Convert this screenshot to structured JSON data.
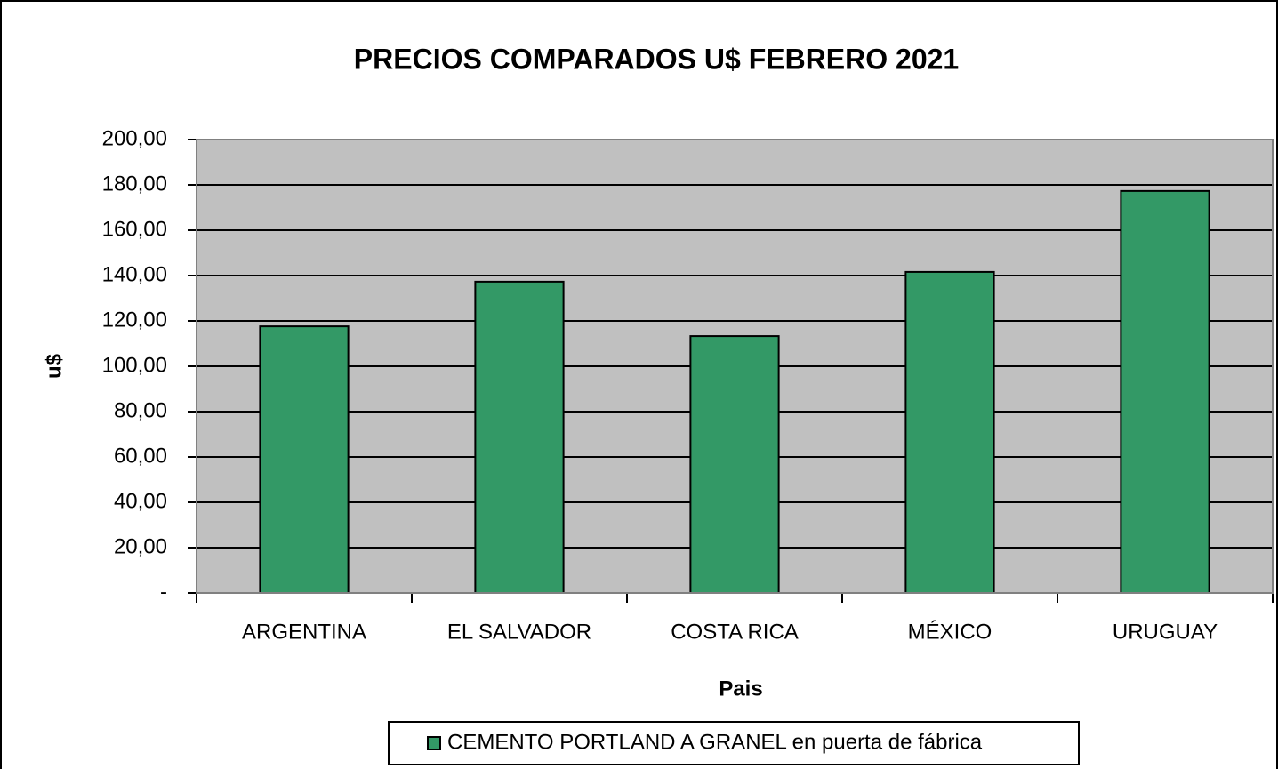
{
  "chart_data": {
    "type": "bar",
    "title": "PRECIOS COMPARADOS U$ FEBRERO 2021",
    "x_label": "Pais",
    "y_label": "u$",
    "categories": [
      "ARGENTINA",
      "EL SALVADOR",
      "COSTA RICA",
      "MÉXICO",
      "URUGUAY"
    ],
    "series": [
      {
        "name": "CEMENTO PORTLAND A GRANEL en puerta de fábrica",
        "color": "#339966",
        "values": [
          117.6,
          137.3,
          113.3,
          141.6,
          177.3
        ]
      }
    ],
    "ylim": [
      0,
      200
    ],
    "yticks": [
      {
        "value": 0,
        "label": "-"
      },
      {
        "value": 20,
        "label": "20,00"
      },
      {
        "value": 40,
        "label": "40,00"
      },
      {
        "value": 60,
        "label": "60,00"
      },
      {
        "value": 80,
        "label": "80,00"
      },
      {
        "value": 100,
        "label": "100,00"
      },
      {
        "value": 120,
        "label": "120,00"
      },
      {
        "value": 140,
        "label": "140,00"
      },
      {
        "value": 160,
        "label": "160,00"
      },
      {
        "value": 180,
        "label": "180,00"
      },
      {
        "value": 200,
        "label": "200,00"
      }
    ],
    "grid": true,
    "legend": "bottom"
  }
}
